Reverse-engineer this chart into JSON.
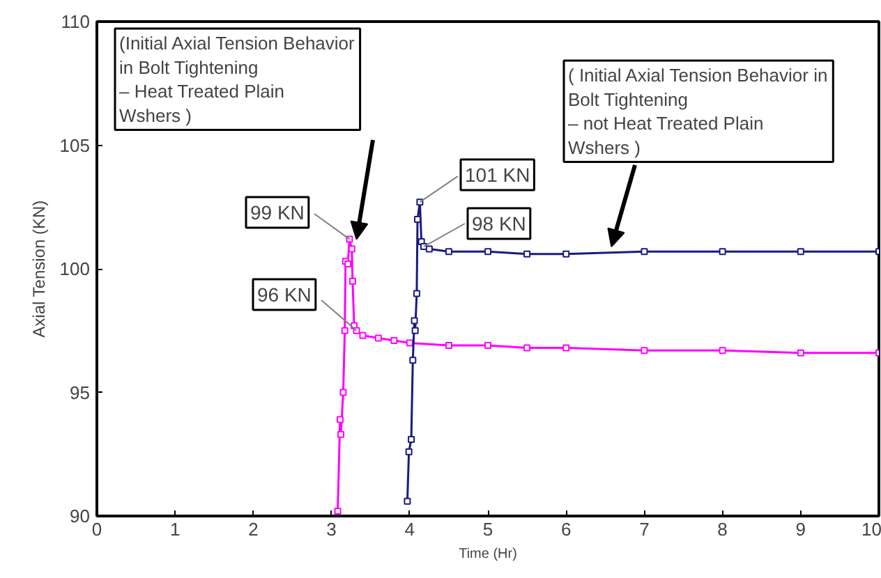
{
  "chart_data": {
    "type": "line",
    "xlabel": "Time (Hr)",
    "ylabel": "Axial Tension (KN)",
    "xlim": [
      0,
      10
    ],
    "ylim": [
      90,
      110
    ],
    "xticks": [
      0,
      1,
      2,
      3,
      4,
      5,
      6,
      7,
      8,
      9,
      10
    ],
    "yticks": [
      90,
      95,
      100,
      105,
      110
    ],
    "grid": false,
    "marker": "square",
    "line_style": "solid",
    "series": [
      {
        "color": "#ff00ff",
        "x": [
          3.08,
          3.11,
          3.12,
          3.15,
          3.17,
          3.18,
          3.21,
          3.23,
          3.26,
          3.27,
          3.29,
          3.32,
          3.4,
          3.6,
          3.8,
          4.0,
          4.5,
          5.0,
          5.5,
          6.0,
          7.0,
          8.0,
          9.0,
          10.0
        ],
        "values": [
          90.2,
          93.9,
          93.3,
          95.0,
          97.5,
          100.3,
          100.2,
          101.2,
          100.8,
          99.5,
          97.7,
          97.5,
          97.3,
          97.2,
          97.1,
          97.0,
          96.9,
          96.9,
          96.8,
          96.8,
          96.7,
          96.7,
          96.6,
          96.6
        ]
      },
      {
        "color": "#1a1a80",
        "x": [
          3.97,
          3.99,
          4.02,
          4.04,
          4.06,
          4.07,
          4.09,
          4.1,
          4.13,
          4.15,
          4.18,
          4.25,
          4.5,
          5.0,
          5.5,
          6.0,
          7.0,
          8.0,
          9.0,
          10.0
        ],
        "values": [
          90.6,
          92.6,
          93.1,
          96.3,
          97.9,
          97.5,
          99.0,
          102.0,
          102.7,
          101.1,
          100.9,
          100.8,
          100.7,
          100.7,
          100.6,
          100.6,
          100.7,
          100.7,
          100.7,
          100.7
        ]
      }
    ],
    "annotations": [
      {
        "text": "(Initial Axial Tension Behavior\nin Bolt Tightening\n –  Heat Treated Plain\nWshers )",
        "x": 3.32,
        "y": 101.2
      },
      {
        "text": "( Initial Axial Tension Behavior in\nBolt Tightening\n – not Heat Treated Plain\nWshers )",
        "x": 6.58,
        "y": 100.9
      },
      {
        "text": "99 KN",
        "x": 3.23,
        "y": 101.2
      },
      {
        "text": "96 KN",
        "x": 3.32,
        "y": 97.5
      },
      {
        "text": "101 KN",
        "x": 4.13,
        "y": 102.7
      },
      {
        "text": "98 KN",
        "x": 4.18,
        "y": 100.9
      }
    ]
  }
}
